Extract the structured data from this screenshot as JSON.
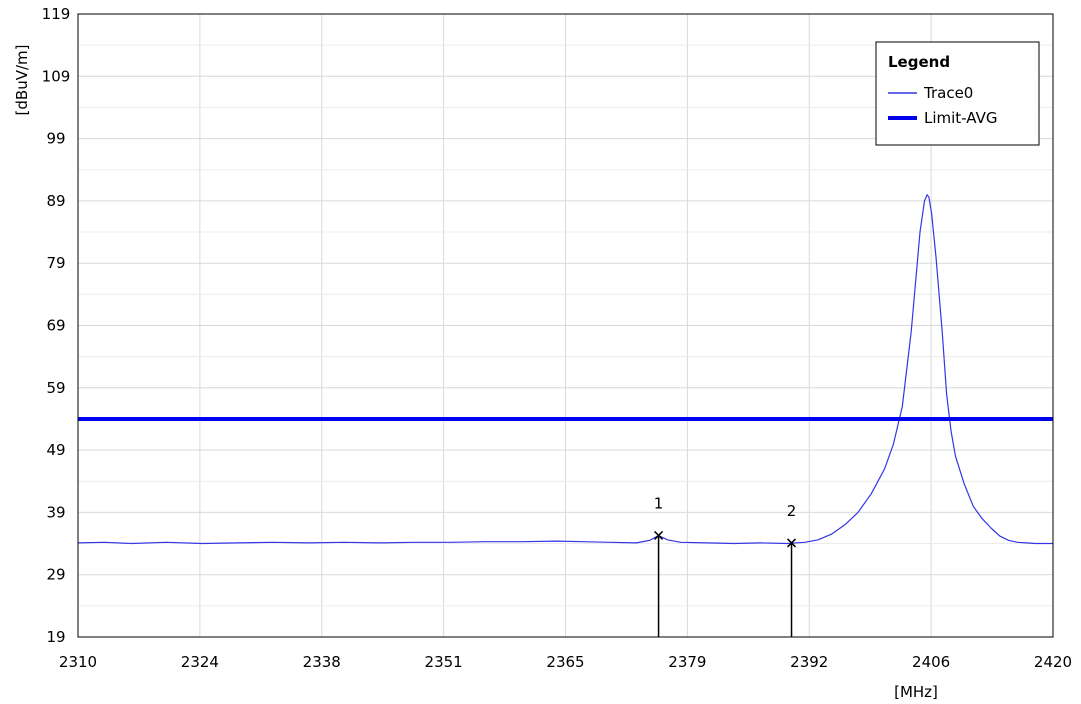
{
  "chart_data": {
    "type": "line",
    "title": "",
    "xlabel": "[MHz]",
    "ylabel": "[dBuV/m]",
    "xlim": [
      2310,
      2420
    ],
    "ylim": [
      19,
      119
    ],
    "x_ticks": [
      "2310",
      "2324",
      "2338",
      "2351",
      "2365",
      "2379",
      "2392",
      "2406",
      "2420"
    ],
    "y_ticks": [
      "19",
      "29",
      "39",
      "49",
      "59",
      "69",
      "79",
      "89",
      "99",
      "109",
      "119"
    ],
    "grid": true,
    "legend": {
      "title": "Legend",
      "placement": "top-right",
      "entries": [
        "Trace0",
        "Limit-AVG"
      ]
    },
    "colors": {
      "trace": "#3535e6",
      "limit": "#0000ee",
      "grid": "#d9d9d9",
      "marker": "#000000"
    },
    "series": [
      {
        "name": "Trace0",
        "x": [
          2310,
          2313,
          2316,
          2320,
          2324,
          2328,
          2332,
          2336,
          2340,
          2344,
          2348,
          2352,
          2356,
          2360,
          2364,
          2367,
          2370,
          2373,
          2374.5,
          2375.5,
          2376.5,
          2378,
          2381,
          2384,
          2387,
          2390,
          2392,
          2393.5,
          2395,
          2396.5,
          2398,
          2399.5,
          2401,
          2402,
          2403,
          2404,
          2404.5,
          2405,
          2405.5,
          2405.8,
          2406,
          2406.3,
          2406.8,
          2407.5,
          2408,
          2408.5,
          2409,
          2410,
          2411,
          2412,
          2413,
          2414,
          2415,
          2416,
          2417,
          2418,
          2420
        ],
        "values": [
          34.1,
          34.2,
          34.0,
          34.2,
          34.0,
          34.1,
          34.2,
          34.1,
          34.2,
          34.1,
          34.2,
          34.2,
          34.3,
          34.3,
          34.4,
          34.3,
          34.2,
          34.1,
          34.5,
          35.3,
          34.6,
          34.2,
          34.1,
          34.0,
          34.1,
          34.0,
          34.2,
          34.6,
          35.5,
          37.0,
          39.0,
          42.0,
          46.0,
          50.0,
          56.0,
          68.0,
          76.0,
          84.0,
          89.0,
          90.0,
          89.6,
          87.0,
          80.0,
          68.0,
          58.0,
          52.0,
          48.0,
          43.5,
          40.0,
          38.0,
          36.5,
          35.2,
          34.5,
          34.2,
          34.1,
          34.0,
          34.0
        ]
      },
      {
        "name": "Limit-AVG",
        "x": [
          2310,
          2420
        ],
        "values": [
          54,
          54
        ]
      }
    ],
    "markers": [
      {
        "label": "1",
        "x": 2375.5,
        "y": 35.3
      },
      {
        "label": "2",
        "x": 2390.5,
        "y": 34.1
      }
    ]
  }
}
